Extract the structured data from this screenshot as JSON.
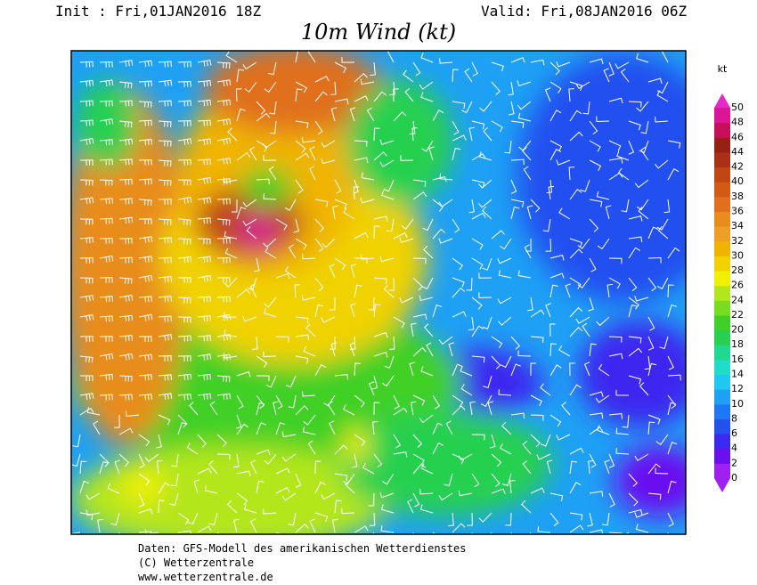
{
  "header": {
    "init": "Init : Fri,01JAN2016 18Z",
    "valid": "Valid: Fri,08JAN2016 06Z",
    "title": "10m Wind (kt)"
  },
  "colorbar": {
    "unit": "kt",
    "labels": [
      0,
      2,
      4,
      6,
      8,
      10,
      12,
      14,
      16,
      18,
      20,
      22,
      24,
      26,
      28,
      30,
      32,
      34,
      36,
      38,
      40,
      42,
      44,
      46,
      48,
      50
    ],
    "colors": [
      "#a020f0",
      "#6a10f0",
      "#3c28f0",
      "#2450f0",
      "#1e78f5",
      "#1ea0f5",
      "#20c8f0",
      "#20dcc8",
      "#20d890",
      "#28d050",
      "#40d028",
      "#78dc20",
      "#b4e61e",
      "#f0f000",
      "#f0d200",
      "#f0b400",
      "#eca028",
      "#e88c1e",
      "#e0701e",
      "#d25a14",
      "#c04614",
      "#aa3214",
      "#962014",
      "#c8105a",
      "#dc1496",
      "#e628c8"
    ]
  },
  "footer": {
    "lines": [
      "Daten: GFS-Modell des amerikanischen Wetterdienstes",
      "(C) Wetterzentrale",
      "www.wetterzentrale.de"
    ]
  }
}
